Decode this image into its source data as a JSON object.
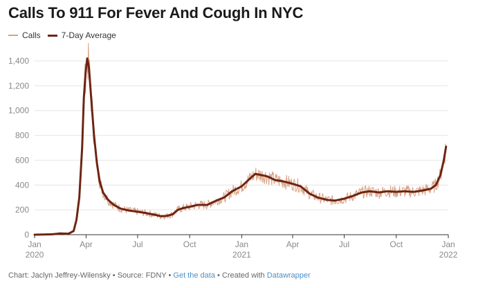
{
  "title": "Calls To 911 For Fever And Cough In NYC",
  "legend": {
    "calls_label": "Calls",
    "avg_label": "7-Day Average"
  },
  "footer": {
    "credit": "Chart: Jaclyn Jeffrey-Wilensky",
    "sep1": " • ",
    "source": "Source: FDNY",
    "sep2": " • ",
    "get_data": "Get the data",
    "sep3": " • ",
    "created": "Created with ",
    "tool": "Datawrapper"
  },
  "colors": {
    "calls": "#d9a183",
    "average": "#6e2412",
    "grid": "#e4e4e4",
    "axis": "#333333"
  },
  "chart_data": {
    "type": "line",
    "title": "Calls To 911 For Fever And Cough In NYC",
    "xlabel": "",
    "ylabel": "",
    "ylim": [
      0,
      1400
    ],
    "xlim": [
      "2020-01-01",
      "2022-01-01"
    ],
    "y_ticks": [
      0,
      200,
      400,
      600,
      800,
      1000,
      1200,
      1400
    ],
    "y_tick_labels": [
      "0",
      "200",
      "400",
      "600",
      "800",
      "1,000",
      "1,200",
      "1,400"
    ],
    "x_ticks": [
      {
        "date": "2020-01-01",
        "label": "Jan",
        "sublabel": "2020"
      },
      {
        "date": "2020-04-01",
        "label": "Apr",
        "sublabel": ""
      },
      {
        "date": "2020-07-01",
        "label": "Jul",
        "sublabel": ""
      },
      {
        "date": "2020-10-01",
        "label": "Oct",
        "sublabel": ""
      },
      {
        "date": "2021-01-01",
        "label": "Jan",
        "sublabel": "2021"
      },
      {
        "date": "2021-04-01",
        "label": "Apr",
        "sublabel": ""
      },
      {
        "date": "2021-07-01",
        "label": "Jul",
        "sublabel": ""
      },
      {
        "date": "2021-10-01",
        "label": "Oct",
        "sublabel": ""
      },
      {
        "date": "2022-01-01",
        "label": "Jan",
        "sublabel": "2022"
      }
    ],
    "grid": true,
    "legend_position": "top-left",
    "series": [
      {
        "name": "7-Day Average",
        "points": [
          [
            "2020-01-01",
            0
          ],
          [
            "2020-02-01",
            3
          ],
          [
            "2020-02-15",
            10
          ],
          [
            "2020-03-01",
            8
          ],
          [
            "2020-03-10",
            30
          ],
          [
            "2020-03-15",
            120
          ],
          [
            "2020-03-20",
            300
          ],
          [
            "2020-03-25",
            700
          ],
          [
            "2020-03-28",
            1100
          ],
          [
            "2020-03-31",
            1300
          ],
          [
            "2020-04-03",
            1420
          ],
          [
            "2020-04-06",
            1350
          ],
          [
            "2020-04-10",
            1100
          ],
          [
            "2020-04-15",
            800
          ],
          [
            "2020-04-20",
            580
          ],
          [
            "2020-04-25",
            430
          ],
          [
            "2020-05-01",
            340
          ],
          [
            "2020-05-10",
            280
          ],
          [
            "2020-05-20",
            240
          ],
          [
            "2020-06-01",
            210
          ],
          [
            "2020-06-15",
            195
          ],
          [
            "2020-07-01",
            185
          ],
          [
            "2020-07-15",
            175
          ],
          [
            "2020-08-01",
            160
          ],
          [
            "2020-08-10",
            150
          ],
          [
            "2020-08-20",
            150
          ],
          [
            "2020-09-01",
            165
          ],
          [
            "2020-09-10",
            200
          ],
          [
            "2020-09-20",
            215
          ],
          [
            "2020-10-01",
            225
          ],
          [
            "2020-10-15",
            240
          ],
          [
            "2020-11-01",
            240
          ],
          [
            "2020-11-10",
            260
          ],
          [
            "2020-11-20",
            280
          ],
          [
            "2020-12-01",
            300
          ],
          [
            "2020-12-15",
            350
          ],
          [
            "2021-01-01",
            390
          ],
          [
            "2021-01-15",
            450
          ],
          [
            "2021-01-25",
            490
          ],
          [
            "2021-02-05",
            480
          ],
          [
            "2021-02-15",
            470
          ],
          [
            "2021-03-01",
            440
          ],
          [
            "2021-03-15",
            430
          ],
          [
            "2021-04-01",
            410
          ],
          [
            "2021-04-15",
            390
          ],
          [
            "2021-05-01",
            330
          ],
          [
            "2021-05-15",
            300
          ],
          [
            "2021-06-01",
            280
          ],
          [
            "2021-06-15",
            275
          ],
          [
            "2021-07-01",
            290
          ],
          [
            "2021-07-15",
            310
          ],
          [
            "2021-08-01",
            340
          ],
          [
            "2021-08-15",
            350
          ],
          [
            "2021-09-01",
            340
          ],
          [
            "2021-09-15",
            350
          ],
          [
            "2021-10-01",
            345
          ],
          [
            "2021-10-15",
            350
          ],
          [
            "2021-11-01",
            345
          ],
          [
            "2021-11-15",
            355
          ],
          [
            "2021-12-01",
            370
          ],
          [
            "2021-12-10",
            400
          ],
          [
            "2021-12-18",
            480
          ],
          [
            "2021-12-24",
            600
          ],
          [
            "2021-12-28",
            710
          ]
        ]
      }
    ]
  }
}
